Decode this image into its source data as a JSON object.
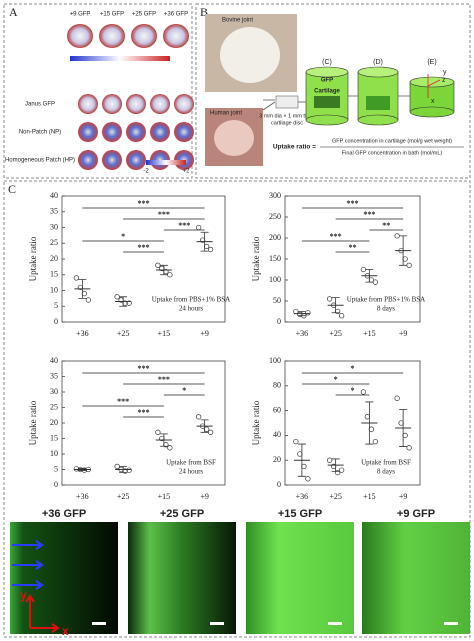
{
  "panels": {
    "a": "A",
    "b": "B",
    "c": "C"
  },
  "panel_a": {
    "variants": [
      "+9 GFP",
      "+15 GFP",
      "+25 GFP",
      "+36 GFP"
    ],
    "rows": [
      "Janus GFP",
      "Non-Patch (NP)",
      "Homogeneous Patch (HP)"
    ],
    "colorbar": [
      "-2",
      "+2"
    ]
  },
  "panel_b": {
    "bovine": "Bovine joint",
    "human": "Human joint",
    "disc": [
      "3 mm dia × 1 mm thick",
      "cartilage disc"
    ],
    "steps": [
      "(C)",
      "(D)",
      "(E)"
    ],
    "gfp": "GFP",
    "cartilage": "Cartilage",
    "axes": [
      "y",
      "z",
      "x"
    ],
    "formula": {
      "lhs": "Uptake ratio =",
      "numerator": "GFP concentration in cartilage (mol/g wet weight)",
      "denominator": "Final GFP concentration in bath (mol/mL)"
    }
  },
  "chart_data": [
    {
      "type": "dot",
      "ylabel": "Uptake ratio",
      "annotation": [
        "Uptake from PBS+1% BSA",
        "24 hours"
      ],
      "categories": [
        "+36",
        "+25",
        "+15",
        "+9"
      ],
      "values": [
        10.5,
        6.5,
        16.5,
        25.5
      ],
      "errors": [
        3,
        1.5,
        1.5,
        3
      ],
      "points": [
        [
          14,
          11,
          9,
          7
        ],
        [
          8,
          7,
          6,
          6
        ],
        [
          18,
          17,
          16,
          15
        ],
        [
          30,
          26,
          24,
          23
        ]
      ],
      "comparisons": [
        {
          "groups": [
            "+36",
            "+9"
          ],
          "label": "***"
        },
        {
          "groups": [
            "+25",
            "+9"
          ],
          "label": "***"
        },
        {
          "groups": [
            "+15",
            "+9"
          ],
          "label": "***"
        },
        {
          "groups": [
            "+36",
            "+15"
          ],
          "label": "*"
        },
        {
          "groups": [
            "+25",
            "+15"
          ],
          "label": "***"
        }
      ],
      "ylim": [
        0,
        40
      ],
      "yticks": [
        0,
        5,
        10,
        15,
        20,
        25,
        30,
        35,
        40
      ]
    },
    {
      "type": "dot",
      "ylabel": "Uptake ratio",
      "annotation": [
        "Uptake from PBS+1% BSA",
        "8 days"
      ],
      "categories": [
        "+36",
        "+25",
        "+15",
        "+9"
      ],
      "values": [
        20,
        40,
        110,
        170
      ],
      "errors": [
        5,
        18,
        15,
        35
      ],
      "points": [
        [
          25,
          18,
          15,
          22
        ],
        [
          55,
          40,
          25,
          15
        ],
        [
          125,
          110,
          100,
          95
        ],
        [
          205,
          170,
          150,
          135
        ]
      ],
      "comparisons": [
        {
          "groups": [
            "+36",
            "+9"
          ],
          "label": "***"
        },
        {
          "groups": [
            "+25",
            "+9"
          ],
          "label": "***"
        },
        {
          "groups": [
            "+15",
            "+9"
          ],
          "label": "**"
        },
        {
          "groups": [
            "+36",
            "+15"
          ],
          "label": "***"
        },
        {
          "groups": [
            "+25",
            "+15"
          ],
          "label": "**"
        }
      ],
      "ylim": [
        0,
        300
      ],
      "yticks": [
        0,
        50,
        100,
        150,
        200,
        250,
        300
      ]
    },
    {
      "type": "dot",
      "ylabel": "Uptake ratio",
      "annotation": [
        "Uptake from BSF",
        "24 hours"
      ],
      "categories": [
        "+36",
        "+25",
        "+15",
        "+9"
      ],
      "values": [
        5,
        5,
        14.5,
        19
      ],
      "errors": [
        0.3,
        1,
        2,
        2
      ],
      "points": [
        [
          5.2,
          5,
          4.8,
          5
        ],
        [
          6,
          5,
          4.5,
          4.8
        ],
        [
          17,
          15,
          13,
          12
        ],
        [
          22,
          19,
          18,
          17
        ]
      ],
      "comparisons": [
        {
          "groups": [
            "+36",
            "+9"
          ],
          "label": "***"
        },
        {
          "groups": [
            "+25",
            "+9"
          ],
          "label": "***"
        },
        {
          "groups": [
            "+15",
            "+9"
          ],
          "label": "*"
        },
        {
          "groups": [
            "+36",
            "+15"
          ],
          "label": "***"
        },
        {
          "groups": [
            "+25",
            "+15"
          ],
          "label": "***"
        }
      ],
      "ylim": [
        0,
        40
      ],
      "yticks": [
        0,
        5,
        10,
        15,
        20,
        25,
        30,
        35,
        40
      ]
    },
    {
      "type": "dot",
      "ylabel": "Uptake ratio",
      "annotation": [
        "Uptake from BSF",
        "8 days"
      ],
      "categories": [
        "+36",
        "+25",
        "+15",
        "+9"
      ],
      "values": [
        20,
        16,
        50,
        46
      ],
      "errors": [
        13,
        5,
        17,
        15
      ],
      "points": [
        [
          35,
          25,
          15,
          5
        ],
        [
          20,
          15,
          10,
          12
        ],
        [
          75,
          55,
          45,
          35
        ],
        [
          70,
          50,
          40,
          30
        ]
      ],
      "comparisons": [
        {
          "groups": [
            "+36",
            "+9"
          ],
          "label": "*"
        },
        {
          "groups": [
            "+36",
            "+15"
          ],
          "label": "*"
        },
        {
          "groups": [
            "+25",
            "+15"
          ],
          "label": "*"
        }
      ],
      "ylim": [
        0,
        100
      ],
      "yticks": [
        0,
        20,
        40,
        60,
        80,
        100
      ]
    }
  ],
  "images": {
    "labels": [
      "+36 GFP",
      "+25 GFP",
      "+15 GFP",
      "+9 GFP"
    ],
    "axes": [
      "y",
      "x"
    ]
  }
}
